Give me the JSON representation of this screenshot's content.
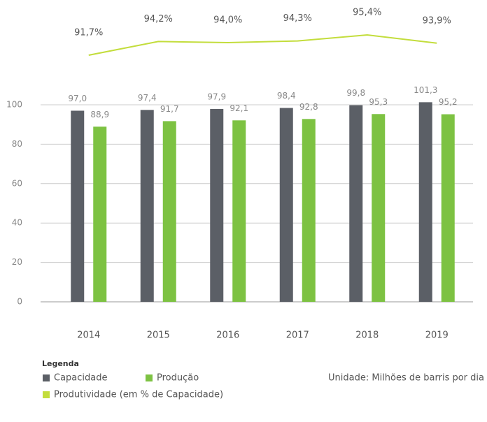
{
  "chart_data": [
    {
      "type": "bar",
      "categories": [
        "2014",
        "2015",
        "2016",
        "2017",
        "2018",
        "2019"
      ],
      "series": [
        {
          "name": "Capacidade",
          "color": "#5b5f66",
          "values": [
            97.0,
            97.4,
            97.9,
            98.4,
            99.8,
            101.3
          ],
          "value_labels": [
            "97,0",
            "97,4",
            "97,9",
            "98,4",
            "99,8",
            "101,3"
          ]
        },
        {
          "name": "Produção",
          "color": "#7dc242",
          "values": [
            88.9,
            91.7,
            92.1,
            92.8,
            95.3,
            95.2
          ],
          "value_labels": [
            "88,9",
            "91,7",
            "92,1",
            "92,8",
            "95,3",
            "95,2"
          ]
        }
      ],
      "ylim": [
        0,
        100
      ],
      "yticks": [
        0,
        20,
        40,
        60,
        80,
        100
      ],
      "grid": true,
      "legend_title": "Legenda",
      "annotation": "Unidade: Milhões de barris por dia"
    },
    {
      "type": "line",
      "categories": [
        "2014",
        "2015",
        "2016",
        "2017",
        "2018",
        "2019"
      ],
      "series": [
        {
          "name": "Produtividade (em % de Capacidade)",
          "color": "#c3dd3c",
          "values": [
            91.7,
            94.2,
            94.0,
            94.3,
            95.4,
            93.9
          ],
          "value_labels": [
            "91,7%",
            "94,2%",
            "94,0%",
            "94,3%",
            "95,4%",
            "93,9%"
          ]
        }
      ]
    }
  ]
}
